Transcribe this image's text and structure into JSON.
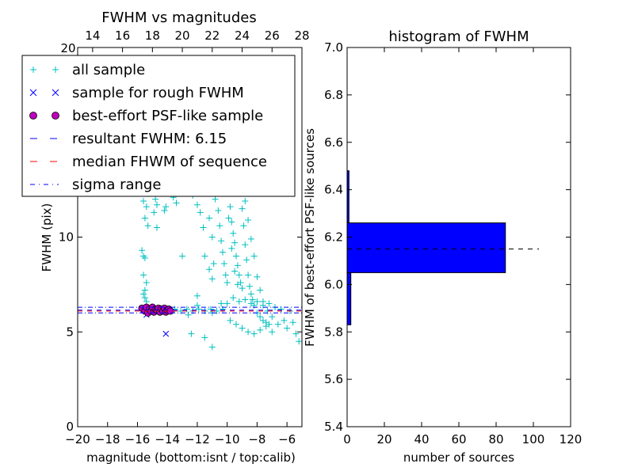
{
  "chart_data": [
    {
      "type": "scatter",
      "title": "FWHM vs magnitudes",
      "xlabel": "magnitude (bottom:isnt / top:calib)",
      "ylabel": "FWHM (pix)",
      "xlim": [
        -20,
        -5
      ],
      "ylim": [
        0,
        20
      ],
      "x_ticks": [
        -20,
        -18,
        -16,
        -14,
        -12,
        -10,
        -8,
        -6
      ],
      "x_tick_labels": [
        "−20",
        "−18",
        "−16",
        "−14",
        "−12",
        "−10",
        "−8",
        "−6"
      ],
      "y_ticks": [
        0,
        5,
        10
      ],
      "y_tick_labels": [
        "0",
        "5",
        "10"
      ],
      "top_axis_label": "",
      "top_xlim": [
        13,
        28
      ],
      "top_ticks": [
        14,
        16,
        18,
        20,
        22,
        24,
        26,
        28
      ],
      "top_tick_labels": [
        "14",
        "16",
        "18",
        "20",
        "22",
        "24",
        "26",
        "28"
      ],
      "top_left_tick_label": "20",
      "colors": {
        "all": "#00bfbf",
        "rough": "#0000ff",
        "best": "#bf00bf",
        "resultant": "#0000ff",
        "median": "#ff0000",
        "sigma": "#0000ff"
      },
      "legend": {
        "placement": "top-left",
        "entries": [
          {
            "label": "all sample",
            "marker": "plus"
          },
          {
            "label": "sample for rough FWHM",
            "marker": "x"
          },
          {
            "label": "best-effort PSF-like sample",
            "marker": "circle"
          },
          {
            "label": "resultant FWHM: 6.15",
            "marker": "dashed-blue"
          },
          {
            "label": "median FHWM of sequence",
            "marker": "dashed-red"
          },
          {
            "label": "sigma range",
            "marker": "dashdot-blue"
          }
        ]
      },
      "resultant_fwhm": 6.15,
      "median_fwhm": 6.1,
      "sigma_range": [
        6.0,
        6.3
      ],
      "series": [
        {
          "name": "all sample",
          "points": [
            [
              -15.7,
              9.3
            ],
            [
              -15.6,
              9.0
            ],
            [
              -15.5,
              8.9
            ],
            [
              -15.6,
              8.0
            ],
            [
              -15.4,
              7.6
            ],
            [
              -15.5,
              7.2
            ],
            [
              -15.6,
              7.0
            ],
            [
              -15.5,
              6.8
            ],
            [
              -15.4,
              6.6
            ],
            [
              -15.6,
              11.9
            ],
            [
              -15.4,
              11.6
            ],
            [
              -15.5,
              11.0
            ],
            [
              -15.3,
              10.6
            ],
            [
              -14.9,
              12.4
            ],
            [
              -14.8,
              12.0
            ],
            [
              -14.7,
              11.7
            ],
            [
              -14.9,
              11.3
            ],
            [
              -14.7,
              10.5
            ],
            [
              -14.2,
              11.4
            ],
            [
              -14.1,
              11.6
            ],
            [
              -13.6,
              12.1
            ],
            [
              -13.4,
              11.8
            ],
            [
              -13.0,
              9.0
            ],
            [
              -12.3,
              12.2
            ],
            [
              -12.0,
              11.7
            ],
            [
              -11.8,
              11.3
            ],
            [
              -11.6,
              10.5
            ],
            [
              -11.5,
              9.0
            ],
            [
              -11.2,
              8.3
            ],
            [
              -11.0,
              7.8
            ],
            [
              -11.5,
              12.4
            ],
            [
              -11.2,
              11.0
            ],
            [
              -11.0,
              10.0
            ],
            [
              -10.9,
              8.6
            ],
            [
              -10.8,
              12.0
            ],
            [
              -10.6,
              11.4
            ],
            [
              -10.5,
              10.6
            ],
            [
              -10.4,
              9.8
            ],
            [
              -10.3,
              9.2
            ],
            [
              -10.2,
              8.6
            ],
            [
              -10.1,
              8.0
            ],
            [
              -10.0,
              7.6
            ],
            [
              -9.9,
              12.4
            ],
            [
              -9.8,
              11.6
            ],
            [
              -9.7,
              10.8
            ],
            [
              -9.6,
              10.2
            ],
            [
              -9.5,
              9.7
            ],
            [
              -9.4,
              9.0
            ],
            [
              -9.3,
              8.5
            ],
            [
              -9.2,
              8.0
            ],
            [
              -9.1,
              7.6
            ],
            [
              -9.0,
              7.3
            ],
            [
              -9.9,
              11.0
            ],
            [
              -9.7,
              9.4
            ],
            [
              -9.5,
              8.2
            ],
            [
              -9.3,
              7.5
            ],
            [
              -9.1,
              12.3
            ],
            [
              -9.0,
              11.5
            ],
            [
              -8.9,
              10.6
            ],
            [
              -8.8,
              9.6
            ],
            [
              -8.7,
              8.8
            ],
            [
              -8.6,
              8.0
            ],
            [
              -8.5,
              7.4
            ],
            [
              -8.4,
              7.0
            ],
            [
              -8.3,
              6.7
            ],
            [
              -8.2,
              6.4
            ],
            [
              -8.0,
              6.0
            ],
            [
              -7.8,
              5.8
            ],
            [
              -7.6,
              5.6
            ],
            [
              -7.4,
              5.5
            ],
            [
              -7.2,
              5.4
            ],
            [
              -8.8,
              11.9
            ],
            [
              -8.6,
              10.9
            ],
            [
              -8.4,
              9.9
            ],
            [
              -8.2,
              9.0
            ],
            [
              -8.0,
              7.9
            ],
            [
              -7.8,
              7.2
            ],
            [
              -7.6,
              6.6
            ],
            [
              -7.3,
              6.1
            ],
            [
              -7.0,
              5.8
            ],
            [
              -10.0,
              6.5
            ],
            [
              -9.6,
              6.8
            ],
            [
              -9.2,
              6.6
            ],
            [
              -8.8,
              6.7
            ],
            [
              -8.4,
              6.5
            ],
            [
              -8.0,
              6.6
            ],
            [
              -7.6,
              6.4
            ],
            [
              -7.2,
              6.5
            ],
            [
              -6.8,
              6.3
            ],
            [
              -6.4,
              6.2
            ],
            [
              -9.8,
              5.6
            ],
            [
              -9.4,
              5.4
            ],
            [
              -9.0,
              5.2
            ],
            [
              -8.6,
              5.0
            ],
            [
              -8.2,
              4.9
            ],
            [
              -7.8,
              5.1
            ],
            [
              -7.4,
              5.3
            ],
            [
              -7.0,
              5.0
            ],
            [
              -6.6,
              5.4
            ],
            [
              -6.2,
              5.6
            ],
            [
              -6.0,
              5.2
            ],
            [
              -5.6,
              5.5
            ],
            [
              -5.4,
              4.9
            ],
            [
              -5.2,
              4.5
            ],
            [
              -5.8,
              6.1
            ],
            [
              -13.9,
              6.1
            ],
            [
              -13.5,
              6.2
            ],
            [
              -13.1,
              6.1
            ],
            [
              -12.7,
              6.2
            ],
            [
              -12.3,
              6.1
            ],
            [
              -11.9,
              6.2
            ],
            [
              -11.5,
              6.1
            ],
            [
              -11.1,
              6.2
            ],
            [
              -10.7,
              6.1
            ],
            [
              -10.3,
              6.2
            ],
            [
              -12.6,
              5.9
            ],
            [
              -12.0,
              6.4
            ],
            [
              -11.0,
              6.0
            ],
            [
              -10.4,
              6.5
            ],
            [
              -11.5,
              4.7
            ],
            [
              -11.0,
              4.2
            ],
            [
              -12.0,
              6.9
            ],
            [
              -12.4,
              4.9
            ]
          ]
        },
        {
          "name": "sample for rough FWHM",
          "points": [
            [
              -15.6,
              6.15
            ],
            [
              -15.3,
              6.2
            ],
            [
              -15.0,
              6.1
            ],
            [
              -14.7,
              6.2
            ],
            [
              -14.4,
              6.15
            ],
            [
              -14.1,
              6.1
            ],
            [
              -15.4,
              5.9
            ],
            [
              -14.1,
              4.9
            ]
          ]
        },
        {
          "name": "best-effort PSF-like sample",
          "points": [
            [
              -15.7,
              6.25
            ],
            [
              -15.5,
              6.1
            ],
            [
              -15.4,
              6.3
            ],
            [
              -15.3,
              6.0
            ],
            [
              -15.2,
              6.2
            ],
            [
              -15.1,
              6.1
            ],
            [
              -15.0,
              6.3
            ],
            [
              -14.9,
              6.05
            ],
            [
              -14.8,
              6.2
            ],
            [
              -14.7,
              6.15
            ],
            [
              -14.6,
              6.25
            ],
            [
              -14.5,
              6.05
            ],
            [
              -14.4,
              6.2
            ],
            [
              -14.3,
              6.1
            ],
            [
              -14.2,
              6.25
            ],
            [
              -14.1,
              6.05
            ],
            [
              -14.0,
              6.15
            ],
            [
              -13.9,
              6.2
            ],
            [
              -13.8,
              6.1
            ]
          ]
        }
      ]
    },
    {
      "type": "bar",
      "orientation": "horizontal",
      "title": "histogram of FWHM",
      "xlabel": "number of sources",
      "ylabel": "FWHM of best-effort PSF-like sources",
      "xlim": [
        0,
        120
      ],
      "ylim": [
        5.4,
        7.0
      ],
      "x_ticks": [
        0,
        20,
        40,
        60,
        80,
        100,
        120
      ],
      "x_tick_labels": [
        "0",
        "20",
        "40",
        "60",
        "80",
        "100",
        "120"
      ],
      "y_ticks": [
        5.4,
        5.6,
        5.8,
        6.0,
        6.2,
        6.4,
        6.6,
        6.8,
        7.0
      ],
      "y_tick_labels": [
        "5.4",
        "5.6",
        "5.8",
        "6.0",
        "6.2",
        "6.4",
        "6.6",
        "6.8",
        "7.0"
      ],
      "bar_color": "#0000ff",
      "bins": [
        {
          "low": 5.83,
          "high": 6.05,
          "count": 2
        },
        {
          "low": 6.05,
          "high": 6.26,
          "count": 85
        },
        {
          "low": 6.26,
          "high": 6.48,
          "count": 1
        }
      ],
      "reference_line": {
        "y": 6.15,
        "x_range": [
          0,
          103
        ],
        "style": "dashed",
        "color": "#000000"
      }
    }
  ]
}
